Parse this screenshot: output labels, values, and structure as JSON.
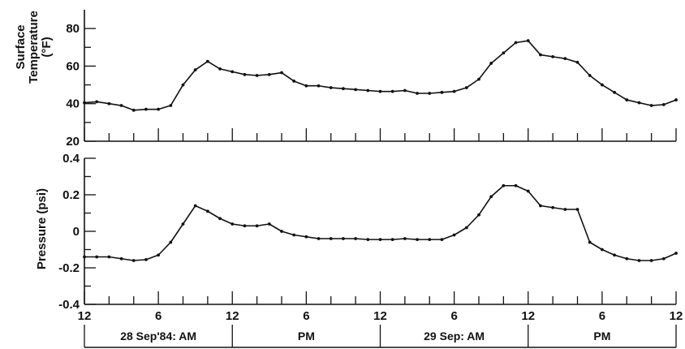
{
  "chart_data": [
    {
      "type": "line",
      "ylabel_lines": [
        "Surface",
        "Temperature",
        "(°F)"
      ],
      "ylim": [
        20,
        90
      ],
      "yticks": [
        20,
        40,
        60,
        80
      ],
      "xlim": [
        0,
        48
      ],
      "grid": false,
      "x": [
        0,
        1,
        2,
        3,
        4,
        5,
        6,
        7,
        8,
        9,
        10,
        11,
        12,
        13,
        14,
        15,
        16,
        17,
        18,
        19,
        20,
        21,
        22,
        23,
        24,
        25,
        26,
        27,
        28,
        29,
        30,
        31,
        32,
        33,
        34,
        35,
        36,
        37,
        38,
        39,
        40,
        41,
        42,
        43,
        44,
        45,
        46,
        47,
        48
      ],
      "series": [
        {
          "values": [
            40.5,
            41,
            40,
            39,
            36.5,
            37,
            37,
            39,
            50,
            58,
            62.5,
            58.5,
            57,
            55.5,
            55,
            55.5,
            56.5,
            52,
            49.5,
            49.5,
            48.5,
            48,
            47.5,
            47,
            46.5,
            46.5,
            47,
            45.5,
            45.5,
            46,
            46.5,
            48.5,
            53,
            61.5,
            67,
            72.5,
            73.5,
            66,
            65,
            64,
            62,
            55,
            50,
            46,
            42,
            40.5,
            39,
            39.5,
            42
          ]
        }
      ]
    },
    {
      "type": "line",
      "ylabel": "Pressure (psi)",
      "ylim": [
        -0.4,
        0.4
      ],
      "yticks": [
        -0.4,
        -0.2,
        0,
        0.2,
        0.4
      ],
      "ytick_labels": [
        "-0.4",
        "-0.2",
        "0",
        "0.2",
        "0.4"
      ],
      "xlim": [
        0,
        48
      ],
      "grid": false,
      "xlabel_ticks": [
        "12",
        "6",
        "12",
        "6",
        "12",
        "6",
        "12",
        "6",
        "12"
      ],
      "xlabel_tick_positions": [
        0,
        6,
        12,
        18,
        24,
        30,
        36,
        42,
        48
      ],
      "period_labels": [
        "28 Sep'84: AM",
        "PM",
        "29 Sep: AM",
        "PM"
      ],
      "x": [
        0,
        1,
        2,
        3,
        4,
        5,
        6,
        7,
        8,
        9,
        10,
        11,
        12,
        13,
        14,
        15,
        16,
        17,
        18,
        19,
        20,
        21,
        22,
        23,
        24,
        25,
        26,
        27,
        28,
        29,
        30,
        31,
        32,
        33,
        34,
        35,
        36,
        37,
        38,
        39,
        40,
        41,
        42,
        43,
        44,
        45,
        46,
        47,
        48
      ],
      "series": [
        {
          "values": [
            -0.14,
            -0.14,
            -0.14,
            -0.15,
            -0.16,
            -0.155,
            -0.13,
            -0.06,
            0.04,
            0.14,
            0.11,
            0.07,
            0.04,
            0.03,
            0.03,
            0.04,
            0.0,
            -0.02,
            -0.03,
            -0.04,
            -0.04,
            -0.04,
            -0.04,
            -0.045,
            -0.045,
            -0.045,
            -0.04,
            -0.045,
            -0.045,
            -0.045,
            -0.02,
            0.02,
            0.09,
            0.19,
            0.25,
            0.25,
            0.22,
            0.14,
            0.13,
            0.12,
            0.12,
            -0.06,
            -0.1,
            -0.13,
            -0.15,
            -0.16,
            -0.16,
            -0.15,
            -0.12
          ]
        }
      ]
    }
  ]
}
